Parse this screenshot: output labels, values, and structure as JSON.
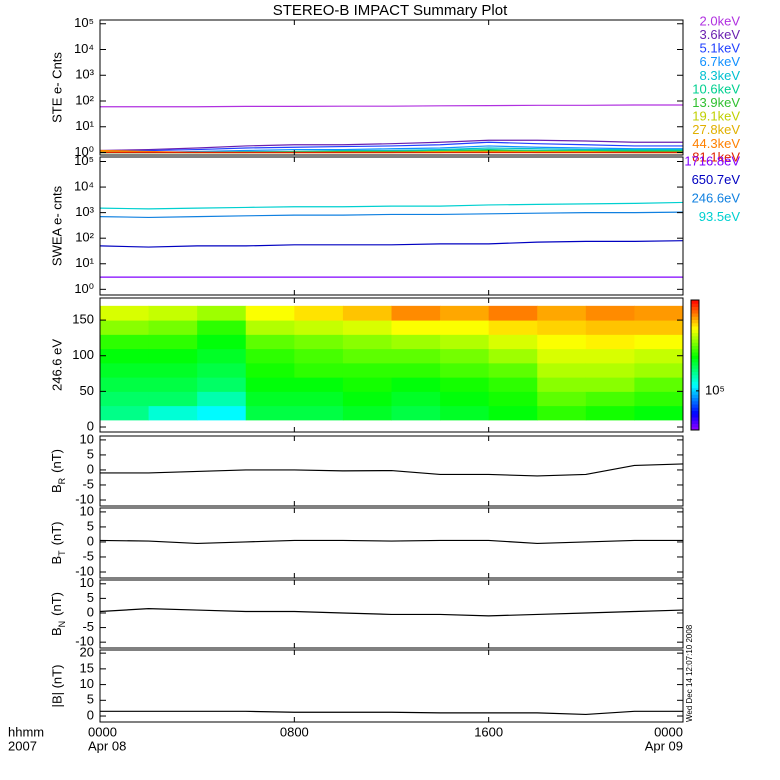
{
  "title": "STEREO-B IMPACT Summary Plot",
  "timestamp": "Wed Dec 14 12:07:10 2008",
  "x_axis": {
    "xlim": [
      0,
      24
    ],
    "xticks": [
      {
        "value": 0,
        "label": "0000"
      },
      {
        "value": 8,
        "label": "0800"
      },
      {
        "value": 16,
        "label": "1600"
      },
      {
        "value": 24,
        "label": "0000"
      }
    ],
    "dates": [
      {
        "value": 0,
        "label": "Apr 08"
      },
      {
        "value": 24,
        "label": "Apr 09"
      }
    ],
    "unit_label": "hhmm",
    "year": "2007"
  },
  "chart_data": [
    {
      "type": "line",
      "ylabel": "STE e- Cnts",
      "log": true,
      "ylim": [
        0.8,
        140000
      ],
      "yticks": [
        {
          "value": 1,
          "label": "10⁰"
        },
        {
          "value": 10,
          "label": "10¹"
        },
        {
          "value": 100,
          "label": "10²"
        },
        {
          "value": 1000,
          "label": "10³"
        },
        {
          "value": 10000,
          "label": "10⁴"
        },
        {
          "value": 100000,
          "label": "10⁵"
        }
      ],
      "x": [
        0,
        2,
        4,
        6,
        8,
        10,
        12,
        14,
        16,
        18,
        20,
        22,
        24
      ],
      "series": [
        {
          "name": "2.0keV",
          "color": "#b030e0",
          "values": [
            60,
            60,
            60,
            62,
            62,
            63,
            63,
            65,
            66,
            68,
            68,
            70,
            70
          ]
        },
        {
          "name": "3.6keV",
          "color": "#6a20b0",
          "values": [
            1.2,
            1.3,
            1.5,
            1.8,
            2,
            2,
            2.2,
            2.5,
            3,
            3,
            2.8,
            2.5,
            2.5
          ]
        },
        {
          "name": "5.1keV",
          "color": "#2040ff",
          "values": [
            1.1,
            1.2,
            1.3,
            1.5,
            1.6,
            1.7,
            1.8,
            2,
            2.5,
            2.2,
            2,
            1.8,
            1.8
          ]
        },
        {
          "name": "6.7keV",
          "color": "#1090ff",
          "values": [
            1,
            1,
            1.1,
            1.2,
            1.3,
            1.3,
            1.4,
            1.5,
            1.8,
            1.6,
            1.5,
            1.4,
            1.4
          ]
        },
        {
          "name": "8.3keV",
          "color": "#00c0d0",
          "values": [
            1,
            1,
            1,
            1.1,
            1.1,
            1.2,
            1.2,
            1.3,
            1.5,
            1.4,
            1.3,
            1.3,
            1.3
          ]
        },
        {
          "name": "10.6keV",
          "color": "#00d090",
          "values": [
            1,
            1,
            1,
            1,
            1.1,
            1.1,
            1.1,
            1.2,
            1.3,
            1.2,
            1.2,
            1.2,
            1.2
          ]
        },
        {
          "name": "13.9keV",
          "color": "#30c030",
          "values": [
            1,
            1,
            1,
            1,
            1,
            1.1,
            1.1,
            1.1,
            1.2,
            1.1,
            1.1,
            1.1,
            1.1
          ]
        },
        {
          "name": "19.1keV",
          "color": "#c0d000",
          "values": [
            1,
            1,
            1,
            1,
            1,
            1,
            1,
            1.1,
            1.1,
            1.1,
            1.1,
            1,
            1
          ]
        },
        {
          "name": "27.8keV",
          "color": "#e0b000",
          "values": [
            1.1,
            1,
            1,
            1,
            1,
            1,
            1,
            1,
            1.1,
            1,
            1,
            1,
            1
          ]
        },
        {
          "name": "44.3keV",
          "color": "#ff8000",
          "values": [
            1.2,
            1.1,
            1,
            1,
            1,
            1,
            1,
            1,
            1,
            1,
            1,
            1,
            1
          ]
        },
        {
          "name": "81.1keV",
          "color": "#e02000",
          "values": [
            1,
            1,
            1,
            1,
            1,
            1,
            1,
            1,
            1,
            1,
            1,
            1,
            1
          ]
        }
      ]
    },
    {
      "type": "line",
      "ylabel": "SWEA e- cnts",
      "log": true,
      "ylim": [
        0.6,
        150000
      ],
      "yticks": [
        {
          "value": 1,
          "label": "10⁰"
        },
        {
          "value": 10,
          "label": "10¹"
        },
        {
          "value": 100,
          "label": "10²"
        },
        {
          "value": 1000,
          "label": "10³"
        },
        {
          "value": 10000,
          "label": "10⁴"
        },
        {
          "value": 100000,
          "label": "10⁵"
        }
      ],
      "x": [
        0,
        2,
        4,
        6,
        8,
        10,
        12,
        14,
        16,
        18,
        20,
        22,
        24
      ],
      "series": [
        {
          "name": "1716.8eV",
          "color": "#8000ff",
          "values": [
            3,
            3,
            3,
            3,
            3,
            3,
            3,
            3,
            3,
            3,
            3,
            3,
            3
          ]
        },
        {
          "name": "650.7eV",
          "color": "#0000c0",
          "values": [
            50,
            45,
            50,
            50,
            55,
            55,
            55,
            60,
            60,
            70,
            75,
            75,
            80
          ]
        },
        {
          "name": "246.6eV",
          "color": "#1080e0",
          "values": [
            700,
            650,
            700,
            750,
            800,
            800,
            850,
            850,
            900,
            950,
            1000,
            1000,
            1050
          ]
        },
        {
          "name": "93.5eV",
          "color": "#00d0d0",
          "values": [
            1500,
            1400,
            1500,
            1600,
            1700,
            1700,
            1800,
            1800,
            2000,
            2100,
            2200,
            2300,
            2500
          ]
        }
      ]
    },
    {
      "type": "heatmap",
      "ylabel": "246.6 eV",
      "ylim": [
        -7,
        181
      ],
      "yticks": [
        0,
        50,
        100,
        150
      ],
      "colormap": "rainbow",
      "zlim": [
        50000,
        500000
      ],
      "zticks": [
        {
          "value": 100000,
          "label": "10⁵"
        }
      ],
      "x": [
        0,
        2,
        4,
        6,
        8,
        10,
        12,
        14,
        16,
        18,
        20,
        22,
        24
      ],
      "y": [
        10,
        30,
        50,
        70,
        90,
        110,
        130,
        150,
        170
      ],
      "z": [
        [
          140000,
          150000,
          160000,
          170000,
          180000,
          200000,
          240000,
          280000
        ],
        [
          120000,
          150000,
          160000,
          170000,
          180000,
          200000,
          230000,
          270000
        ],
        [
          110000,
          130000,
          150000,
          160000,
          170000,
          180000,
          200000,
          250000
        ],
        [
          160000,
          170000,
          180000,
          190000,
          200000,
          220000,
          260000,
          300000
        ],
        [
          160000,
          170000,
          180000,
          200000,
          210000,
          230000,
          270000,
          320000
        ],
        [
          170000,
          180000,
          190000,
          200000,
          220000,
          240000,
          280000,
          340000
        ],
        [
          160000,
          170000,
          180000,
          200000,
          220000,
          250000,
          300000,
          380000
        ],
        [
          170000,
          180000,
          190000,
          210000,
          230000,
          260000,
          300000,
          360000
        ],
        [
          180000,
          190000,
          200000,
          220000,
          250000,
          280000,
          320000,
          390000
        ],
        [
          200000,
          220000,
          240000,
          260000,
          280000,
          300000,
          330000,
          360000
        ],
        [
          190000,
          210000,
          240000,
          260000,
          280000,
          310000,
          340000,
          380000
        ],
        [
          180000,
          200000,
          220000,
          250000,
          270000,
          300000,
          340000,
          370000
        ]
      ]
    },
    {
      "type": "line",
      "ylabel": {
        "base": "B",
        "sub": "R",
        "unit": "(nT)"
      },
      "ylim": [
        -12,
        11.3
      ],
      "yticks": [
        -10,
        -5,
        0,
        5,
        10
      ],
      "x": [
        0,
        2,
        4,
        6,
        8,
        10,
        12,
        14,
        16,
        18,
        20,
        22,
        24
      ],
      "series": [
        {
          "color": "#000000",
          "values": [
            -1,
            -1,
            -0.5,
            0,
            0,
            -0.3,
            -0.2,
            -1.5,
            -1.5,
            -2,
            -1.5,
            1.5,
            2
          ]
        }
      ]
    },
    {
      "type": "line",
      "ylabel": {
        "base": "B",
        "sub": "T",
        "unit": "(nT)"
      },
      "ylim": [
        -12,
        11.3
      ],
      "yticks": [
        -10,
        -5,
        0,
        5,
        10
      ],
      "x": [
        0,
        2,
        4,
        6,
        8,
        10,
        12,
        14,
        16,
        18,
        20,
        22,
        24
      ],
      "series": [
        {
          "color": "#000000",
          "values": [
            0.5,
            0.3,
            -0.5,
            0,
            0.5,
            0.5,
            0.3,
            0.5,
            0.5,
            -0.5,
            0,
            0.5,
            0.5
          ]
        }
      ]
    },
    {
      "type": "line",
      "ylabel": {
        "base": "B",
        "sub": "N",
        "unit": "(nT)"
      },
      "ylim": [
        -12,
        11.3
      ],
      "yticks": [
        -10,
        -5,
        0,
        5,
        10
      ],
      "x": [
        0,
        2,
        4,
        6,
        8,
        10,
        12,
        14,
        16,
        18,
        20,
        22,
        24
      ],
      "series": [
        {
          "color": "#000000",
          "values": [
            0.5,
            1.5,
            1,
            0.5,
            0.5,
            0,
            -0.5,
            -0.5,
            -1,
            -0.5,
            0,
            0.5,
            1
          ]
        }
      ]
    },
    {
      "type": "line",
      "ylabel": "|B| (nT)",
      "ylim": [
        -1.9,
        21
      ],
      "yticks": [
        0,
        5,
        10,
        15,
        20
      ],
      "x": [
        0,
        2,
        4,
        6,
        8,
        10,
        12,
        14,
        16,
        18,
        20,
        22,
        24
      ],
      "series": [
        {
          "color": "#000000",
          "values": [
            1.5,
            1.5,
            1.5,
            1.5,
            1.2,
            1.2,
            1.2,
            1,
            1,
            1,
            0.5,
            1.5,
            1.5
          ]
        }
      ]
    }
  ]
}
